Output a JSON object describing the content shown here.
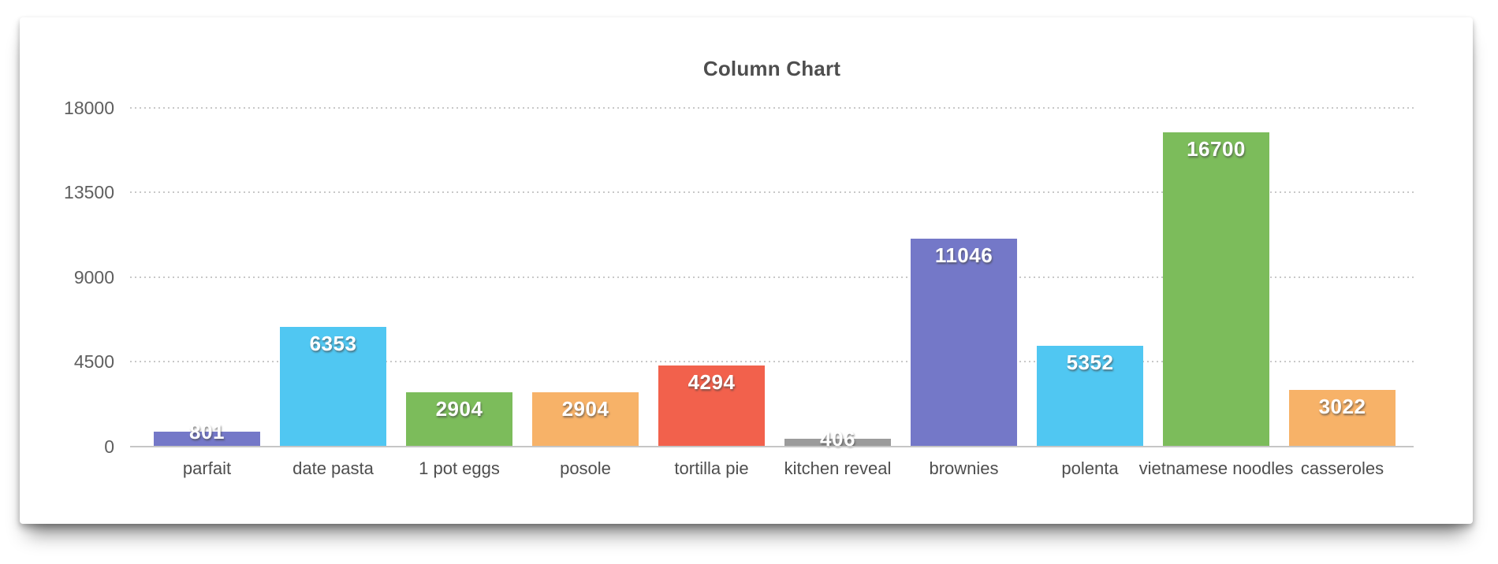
{
  "chart_data": {
    "type": "bar",
    "title": "Column Chart",
    "categories": [
      "parfait",
      "date pasta",
      "1 pot eggs",
      "posole",
      "tortilla pie",
      "kitchen reveal",
      "brownies",
      "polenta",
      "vietnamese noodles",
      "casseroles"
    ],
    "values": [
      801,
      6353,
      2904,
      2904,
      4294,
      406,
      11046,
      5352,
      16700,
      3022
    ],
    "bar_colors": [
      "#7478C8",
      "#50C7F2",
      "#7CBC5B",
      "#F7B268",
      "#F2614C",
      "#9B9B9B",
      "#7478C8",
      "#50C7F2",
      "#7CBC5B",
      "#F7B268"
    ],
    "xlabel": "",
    "ylabel": "",
    "ylim": [
      0,
      18000
    ],
    "yticks": [
      0,
      4500,
      9000,
      13500,
      18000
    ],
    "grid": "horizontal-dotted",
    "legend": "none",
    "value_label_style": "white text with dark drop shadow, inside top of bar; above bar top for very short bars"
  },
  "colors": {
    "card_background": "#ffffff",
    "title_text": "#4e4e4e",
    "axis_text": "#5f5f5f",
    "category_text": "#4e4e4e",
    "gridline": "#c8c8c8",
    "baseline": "#c6c6c6",
    "value_label_text": "#ffffff"
  }
}
